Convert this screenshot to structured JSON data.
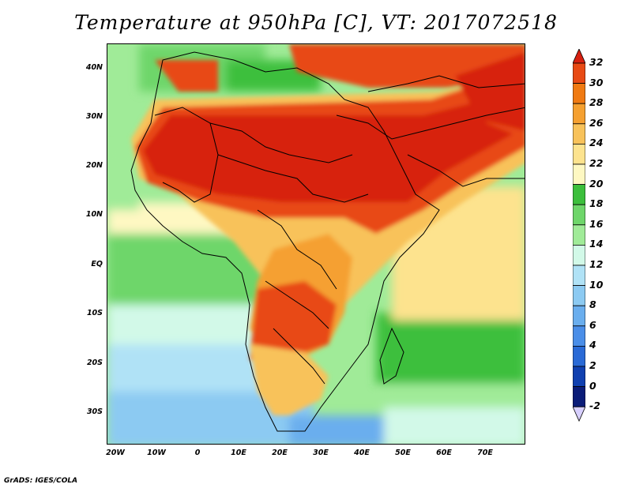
{
  "title": "Temperature at 950hPa [C], VT: 2017072518",
  "credit": "GrADS: IGES/COLA",
  "lat_ticks": [
    "40N",
    "30N",
    "20N",
    "10N",
    "EQ",
    "10S",
    "20S",
    "30S"
  ],
  "lon_ticks": [
    "20W",
    "10W",
    "0",
    "10E",
    "20E",
    "30E",
    "40E",
    "50E",
    "60E",
    "70E"
  ],
  "colorbar": {
    "labels": [
      "32",
      "30",
      "28",
      "26",
      "24",
      "22",
      "20",
      "18",
      "16",
      "14",
      "12",
      "10",
      "8",
      "6",
      "4",
      "2",
      "0",
      "-2"
    ],
    "colors": [
      "#d72010",
      "#e84a14",
      "#f07a12",
      "#f5a030",
      "#f8c25a",
      "#fde38e",
      "#fef8c2",
      "#3cbf3c",
      "#6ed66a",
      "#a0eb98",
      "#d2f9e8",
      "#b0e2f6",
      "#8ccaf2",
      "#6aaeee",
      "#4a8ee8",
      "#2a6ad6",
      "#1040b0",
      "#0a1c78"
    ],
    "low_cap": "#d8d0ff"
  }
}
